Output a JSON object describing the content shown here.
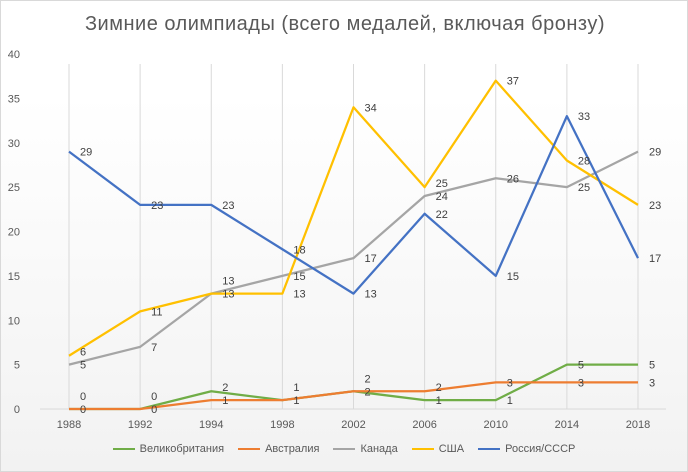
{
  "chart_data": {
    "type": "line",
    "title": "Зимние олимпиады (всего медалей, включая бронзу)",
    "xlabel": "",
    "ylabel": "",
    "ylim": [
      0,
      40
    ],
    "yticks": [
      "0",
      "5",
      "10",
      "15",
      "20",
      "25",
      "30",
      "35",
      "40"
    ],
    "categories": [
      "1988",
      "1992",
      "1994",
      "1998",
      "2002",
      "2006",
      "2010",
      "2014",
      "2018"
    ],
    "legend_position": "bottom",
    "grid": "vertical",
    "series": [
      {
        "name": "Великобритания",
        "color": "#70ad47",
        "values": [
          0,
          0,
          2,
          1,
          2,
          1,
          1,
          5,
          5
        ]
      },
      {
        "name": "Австралия",
        "color": "#ed7d31",
        "values": [
          0,
          0,
          1,
          1,
          2,
          2,
          3,
          3,
          3
        ]
      },
      {
        "name": "Канада",
        "color": "#a5a5a5",
        "values": [
          5,
          7,
          13,
          15,
          17,
          24,
          26,
          25,
          29
        ]
      },
      {
        "name": "США",
        "color": "#ffc000",
        "values": [
          6,
          11,
          13,
          13,
          34,
          25,
          37,
          28,
          23
        ]
      },
      {
        "name": "Россия/СССР",
        "color": "#4472c4",
        "values": [
          29,
          23,
          23,
          18,
          13,
          22,
          15,
          33,
          17
        ]
      }
    ]
  }
}
